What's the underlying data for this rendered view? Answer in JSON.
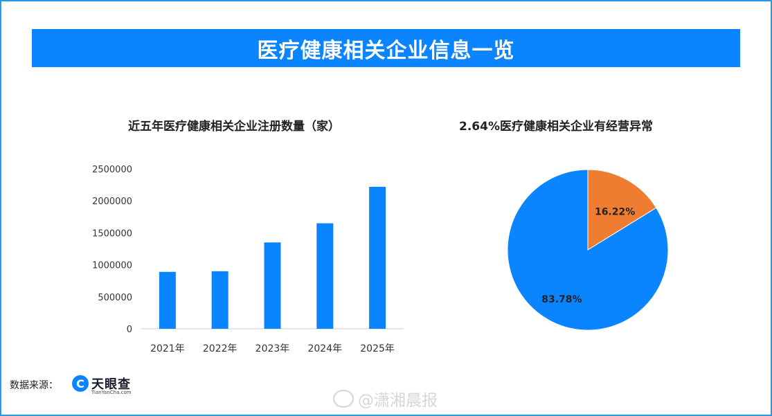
{
  "banner": {
    "title": "医疗健康相关企业信息一览"
  },
  "chart_data": [
    {
      "type": "bar",
      "title": "近五年医疗健康相关企业注册数量（家）",
      "categories": [
        "2021年",
        "2022年",
        "2023年",
        "2024年",
        "2025年"
      ],
      "values": [
        890000,
        900000,
        1350000,
        1650000,
        2220000
      ],
      "ylim": [
        0,
        2500000
      ],
      "yticks": [
        0,
        500000,
        1000000,
        1500000,
        2000000,
        2500000
      ],
      "grid": false,
      "bar_color": "#0a84ff"
    },
    {
      "type": "pie",
      "title": "2.64%医疗健康相关企业有经营异常",
      "slices": [
        {
          "label": "16.22%",
          "value": 16.22,
          "color": "#ef7d31"
        },
        {
          "label": "83.78%",
          "value": 83.78,
          "color": "#0a84ff"
        }
      ]
    }
  ],
  "footer": {
    "source_label": "数据来源：",
    "logo_mark": "C",
    "logo_text": "天眼查",
    "logo_sub": "TianYanCha.com",
    "watermark": "@潇湘晨报"
  }
}
